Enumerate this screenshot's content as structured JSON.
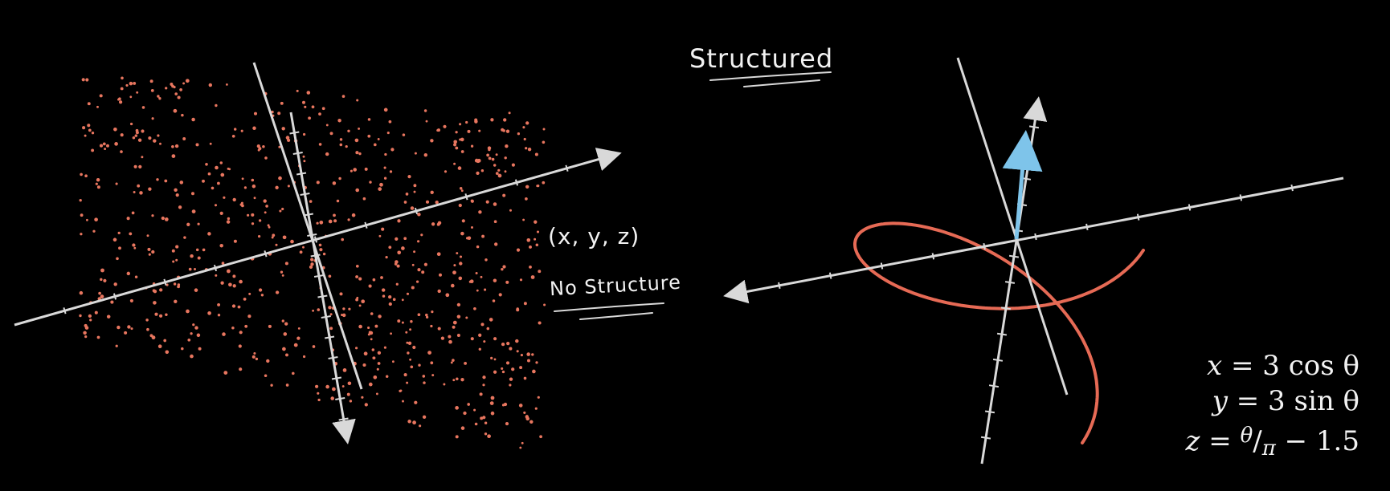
{
  "annotations": {
    "structured": "Structured",
    "no_structure": "No Structure",
    "coords": "(x, y, z)"
  },
  "equations": {
    "x_lhs": "x",
    "x_rhs": "= 3 cos θ",
    "y_lhs": "y",
    "y_rhs": "= 3  sin θ",
    "z_lhs": "z",
    "z_eq": "=",
    "z_num": "θ",
    "z_slash": "/",
    "z_den": "π",
    "z_tail": "− 1.5"
  },
  "helix": {
    "radius": 3,
    "theta_range": [
      0,
      6.2832
    ],
    "z_offset": -1.5
  },
  "colors": {
    "background": "#000000",
    "points": "#e8765f",
    "helix": "#e66a55",
    "axes": "#d9d9d9",
    "vector": "#7ec4ea",
    "text": "#f2f2f2"
  },
  "point_cloud": {
    "count": 720,
    "seed": 7
  }
}
